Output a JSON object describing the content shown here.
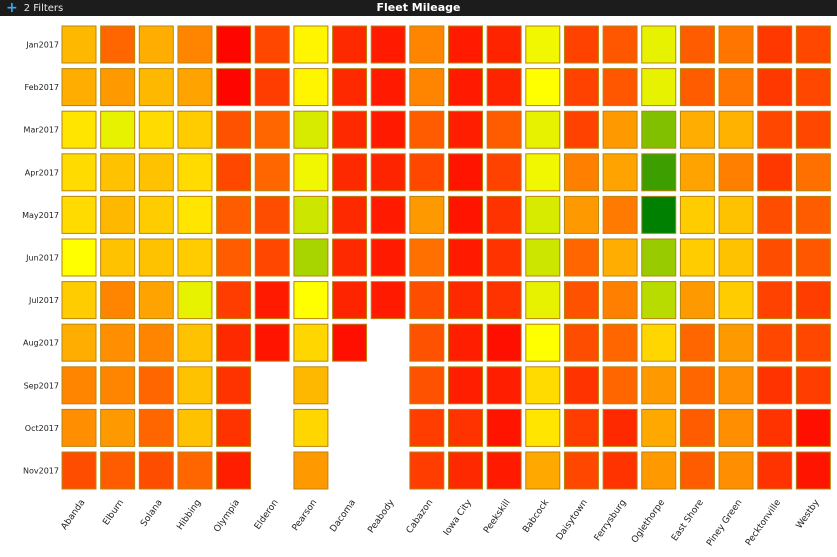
{
  "header": {
    "filters_label": "2 Filters",
    "title": "Fleet Mileage"
  },
  "colors": {
    "low": "#008000",
    "mid": "#ffff00",
    "high": "#ff0000",
    "cell_border": "#b8860b",
    "header_bg": "#1c1c1c",
    "filter_icon": "#2ab0ff"
  },
  "icons": {
    "filter": "plus-icon"
  },
  "chart_data": {
    "type": "heatmap",
    "title": "Fleet Mileage",
    "x_categories": [
      "Abanda",
      "Elburn",
      "Solana",
      "Hibbing",
      "Olympia",
      "Elderon",
      "Pearson",
      "Dacoma",
      "Peabody",
      "Cabazon",
      "Iowa City",
      "Peekskill",
      "Babcock",
      "Daisytown",
      "Ferrysburg",
      "Oglethorpe",
      "East Shore",
      "Piney Green",
      "Pecktonville",
      "Westby"
    ],
    "y_categories": [
      "Jan2017",
      "Feb2017",
      "Mar2017",
      "Apr2017",
      "May2017",
      "Jun2017",
      "Jul2017",
      "Aug2017",
      "Sep2017",
      "Oct2017",
      "Nov2017"
    ],
    "value_range": [
      0,
      1
    ],
    "color_scale": [
      "green",
      "yellow",
      "red"
    ],
    "values": [
      [
        0.64,
        0.8,
        0.66,
        0.74,
        0.99,
        0.86,
        0.52,
        0.92,
        0.95,
        0.74,
        0.95,
        0.93,
        0.47,
        0.87,
        0.83,
        0.45,
        0.82,
        0.77,
        0.89,
        0.86
      ],
      [
        0.66,
        0.7,
        0.64,
        0.68,
        0.99,
        0.88,
        0.52,
        0.92,
        0.95,
        0.74,
        0.95,
        0.93,
        0.5,
        0.87,
        0.83,
        0.45,
        0.82,
        0.77,
        0.89,
        0.86
      ],
      [
        0.55,
        0.45,
        0.57,
        0.6,
        0.84,
        0.8,
        0.42,
        0.92,
        0.95,
        0.82,
        0.94,
        0.82,
        0.45,
        0.87,
        0.7,
        0.25,
        0.66,
        0.65,
        0.86,
        0.86
      ],
      [
        0.57,
        0.62,
        0.62,
        0.57,
        0.86,
        0.8,
        0.47,
        0.92,
        0.93,
        0.86,
        0.96,
        0.87,
        0.47,
        0.75,
        0.68,
        0.12,
        0.68,
        0.75,
        0.89,
        0.78
      ],
      [
        0.57,
        0.64,
        0.6,
        0.55,
        0.82,
        0.85,
        0.4,
        0.92,
        0.95,
        0.7,
        0.96,
        0.9,
        0.42,
        0.7,
        0.76,
        0.0,
        0.6,
        0.62,
        0.85,
        0.82
      ],
      [
        0.5,
        0.62,
        0.62,
        0.6,
        0.82,
        0.86,
        0.33,
        0.92,
        0.95,
        0.78,
        0.95,
        0.9,
        0.4,
        0.8,
        0.66,
        0.3,
        0.6,
        0.62,
        0.85,
        0.83
      ],
      [
        0.6,
        0.74,
        0.68,
        0.45,
        0.88,
        0.95,
        0.5,
        0.93,
        0.95,
        0.85,
        0.92,
        0.9,
        0.45,
        0.84,
        0.75,
        0.36,
        0.7,
        0.6,
        0.87,
        0.88
      ],
      [
        0.66,
        0.72,
        0.74,
        0.62,
        0.92,
        0.96,
        0.58,
        0.97,
        null,
        0.84,
        0.94,
        0.97,
        0.5,
        0.85,
        0.8,
        0.58,
        0.8,
        0.7,
        0.86,
        0.86
      ],
      [
        0.74,
        0.74,
        0.8,
        0.62,
        0.9,
        null,
        0.64,
        null,
        null,
        0.84,
        0.94,
        0.94,
        0.57,
        0.9,
        0.8,
        0.7,
        0.8,
        0.72,
        0.9,
        0.88
      ],
      [
        0.72,
        0.7,
        0.8,
        0.62,
        0.9,
        null,
        0.58,
        null,
        null,
        0.88,
        0.9,
        0.96,
        0.55,
        0.88,
        0.92,
        0.67,
        0.82,
        0.72,
        0.9,
        0.97
      ],
      [
        0.85,
        0.82,
        0.85,
        0.8,
        0.94,
        null,
        0.7,
        null,
        null,
        0.88,
        0.92,
        0.95,
        0.67,
        0.86,
        0.9,
        0.7,
        0.82,
        0.72,
        0.9,
        0.96
      ]
    ]
  }
}
